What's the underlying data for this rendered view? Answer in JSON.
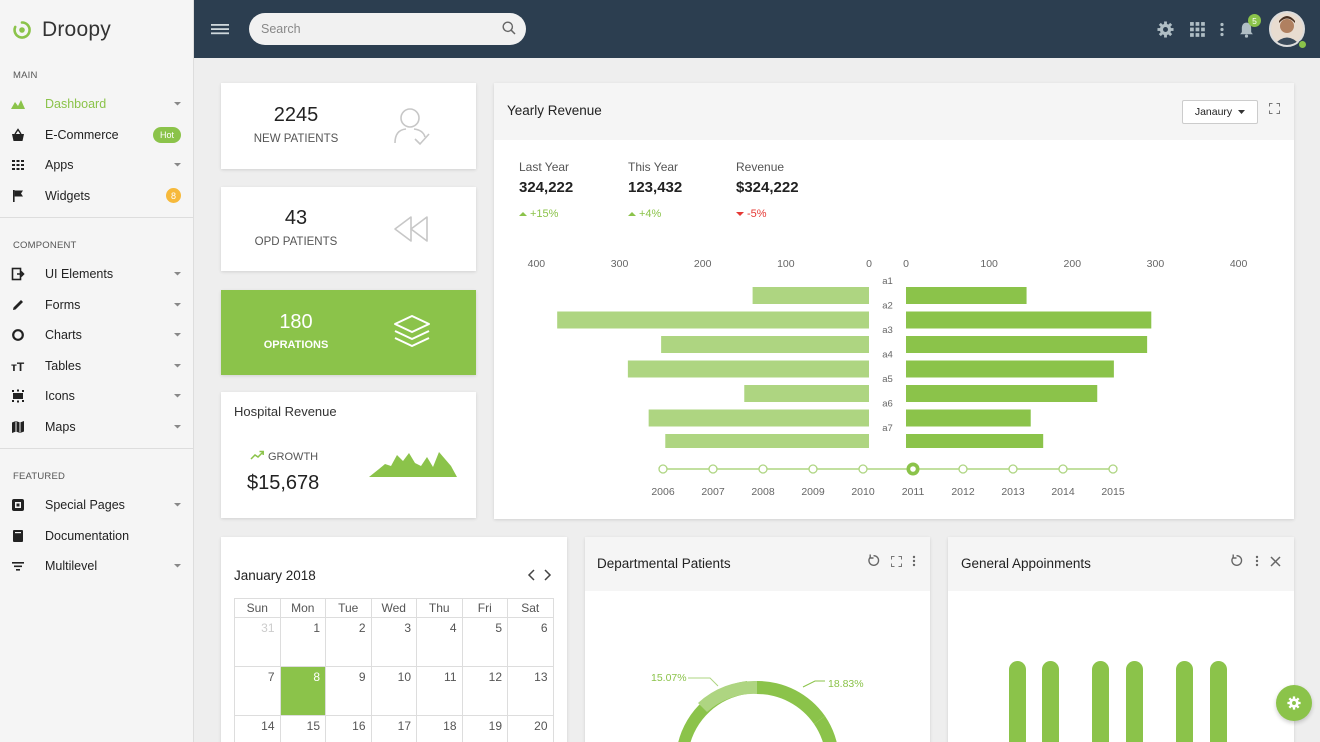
{
  "brand": {
    "name": "Droopy",
    "color": "#8bc34a"
  },
  "sidebar": {
    "sections": [
      {
        "title": "MAIN",
        "items": [
          {
            "label": "Dashboard",
            "icon": "dashboard-icon",
            "active": true,
            "caret": true
          },
          {
            "label": "E-Commerce",
            "icon": "basket-icon",
            "badge": "Hot"
          },
          {
            "label": "Apps",
            "icon": "apps-icon",
            "caret": true
          },
          {
            "label": "Widgets",
            "icon": "flag-icon",
            "badge_num": "8"
          }
        ]
      },
      {
        "title": "COMPONENT",
        "items": [
          {
            "label": "UI Elements",
            "icon": "ui-elements-icon",
            "caret": true
          },
          {
            "label": "Forms",
            "icon": "pencil-icon",
            "caret": true
          },
          {
            "label": "Charts",
            "icon": "donut-chart-icon",
            "caret": true
          },
          {
            "label": "Tables",
            "icon": "table-icon",
            "caret": true
          },
          {
            "label": "Icons",
            "icon": "icons-icon",
            "caret": true
          },
          {
            "label": "Maps",
            "icon": "map-icon",
            "caret": true
          }
        ]
      },
      {
        "title": "FEATURED",
        "items": [
          {
            "label": "Special Pages",
            "icon": "special-pages-icon",
            "caret": true
          },
          {
            "label": "Documentation",
            "icon": "book-icon"
          },
          {
            "label": "Multilevel",
            "icon": "multilevel-icon",
            "caret": true
          }
        ]
      }
    ]
  },
  "topbar": {
    "search_placeholder": "Search",
    "notification_count": "5"
  },
  "stats": {
    "new_patients": {
      "value": "2245",
      "label": "NEW PATIENTS"
    },
    "opd_patients": {
      "value": "43",
      "label": "OPD PATIENTS"
    },
    "operations": {
      "value": "180",
      "label": "OPRATIONS"
    }
  },
  "hospital_revenue": {
    "title": "Hospital Revenue",
    "growth_label": "GROWTH",
    "amount": "$15,678"
  },
  "yearly_revenue": {
    "title": "Yearly Revenue",
    "month_select": "Janaury",
    "metrics": [
      {
        "label": "Last Year",
        "value": "324,222",
        "change": "+15%",
        "direction": "up"
      },
      {
        "label": "This Year",
        "value": "123,432",
        "change": "+4%",
        "direction": "up"
      },
      {
        "label": "Revenue",
        "value": "$324,222",
        "change": "-5%",
        "direction": "down"
      }
    ]
  },
  "timeline": {
    "years": [
      "2006",
      "2007",
      "2008",
      "2009",
      "2010",
      "2011",
      "2012",
      "2013",
      "2014",
      "2015"
    ],
    "selected": "2011"
  },
  "calendar": {
    "title": "January 2018",
    "days": [
      "Sun",
      "Mon",
      "Tue",
      "Wed",
      "Thu",
      "Fri",
      "Sat"
    ],
    "weeks": [
      [
        "31",
        "1",
        "2",
        "3",
        "4",
        "5",
        "6"
      ],
      [
        "7",
        "8",
        "9",
        "10",
        "11",
        "12",
        "13"
      ],
      [
        "14",
        "15",
        "16",
        "17",
        "18",
        "19",
        "20"
      ]
    ]
  },
  "departmental_patients": {
    "title": "Departmental Patients",
    "label_left": "15.07%",
    "label_right": "18.83%"
  },
  "general_appointments": {
    "title": "General Appoinments"
  },
  "chart_data": {
    "type": "bar",
    "categories": [
      "a1",
      "a2",
      "a3",
      "a4",
      "a5",
      "a6",
      "a7"
    ],
    "series": [
      {
        "values": [
          140,
          375,
          250,
          290,
          150,
          265,
          245
        ],
        "color": "#aed581"
      },
      {
        "values": [
          145,
          295,
          290,
          250,
          230,
          150,
          165
        ],
        "color": "#8bc34a"
      }
    ],
    "xlim": [
      0,
      400
    ],
    "left_ticks": [
      "400",
      "300",
      "200",
      "100",
      "0"
    ],
    "right_ticks": [
      "0",
      "100",
      "200",
      "300",
      "400"
    ],
    "layout": "back-to-back horizontal"
  }
}
